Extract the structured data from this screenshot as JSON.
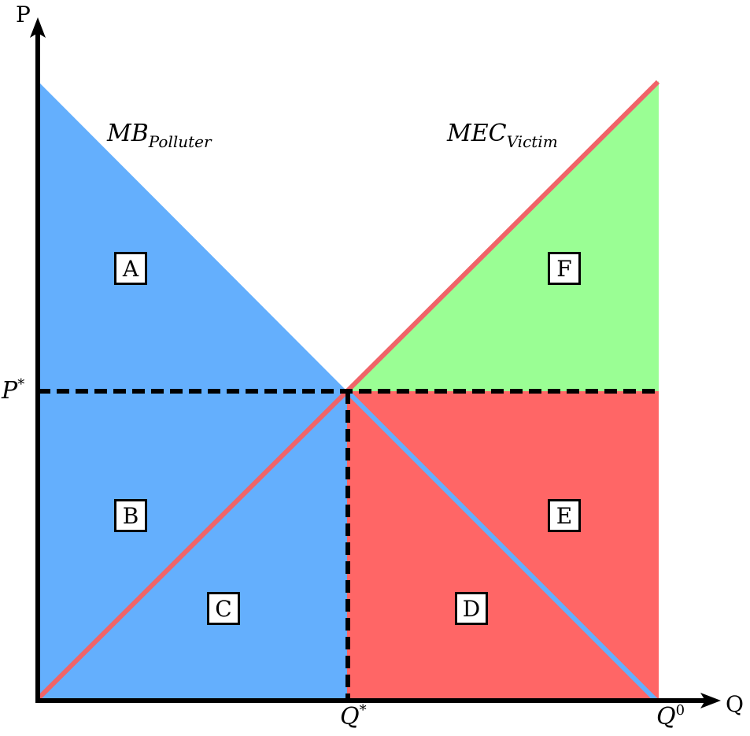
{
  "axes": {
    "y_label": "P",
    "x_label": "Q",
    "p_star": {
      "base": "P",
      "sup": "*"
    },
    "q_star": {
      "base": "Q",
      "sup": "*"
    },
    "q_zero": {
      "base": "Q",
      "sup": "0"
    }
  },
  "curves": {
    "mb": {
      "base": "MB",
      "sub": "Polluter",
      "color": "#6aaffd"
    },
    "mec": {
      "base": "MEC",
      "sub": "Victim",
      "color": "#f06468"
    }
  },
  "regions": {
    "A": {
      "label": "A",
      "color": "#64affd"
    },
    "B": {
      "label": "B",
      "color": "#64affd"
    },
    "C": {
      "label": "C",
      "color": "#64affd"
    },
    "D": {
      "label": "D",
      "color": "#ff6666"
    },
    "E": {
      "label": "E",
      "color": "#ff6666"
    },
    "F": {
      "label": "F",
      "color": "#9afe94"
    }
  }
}
